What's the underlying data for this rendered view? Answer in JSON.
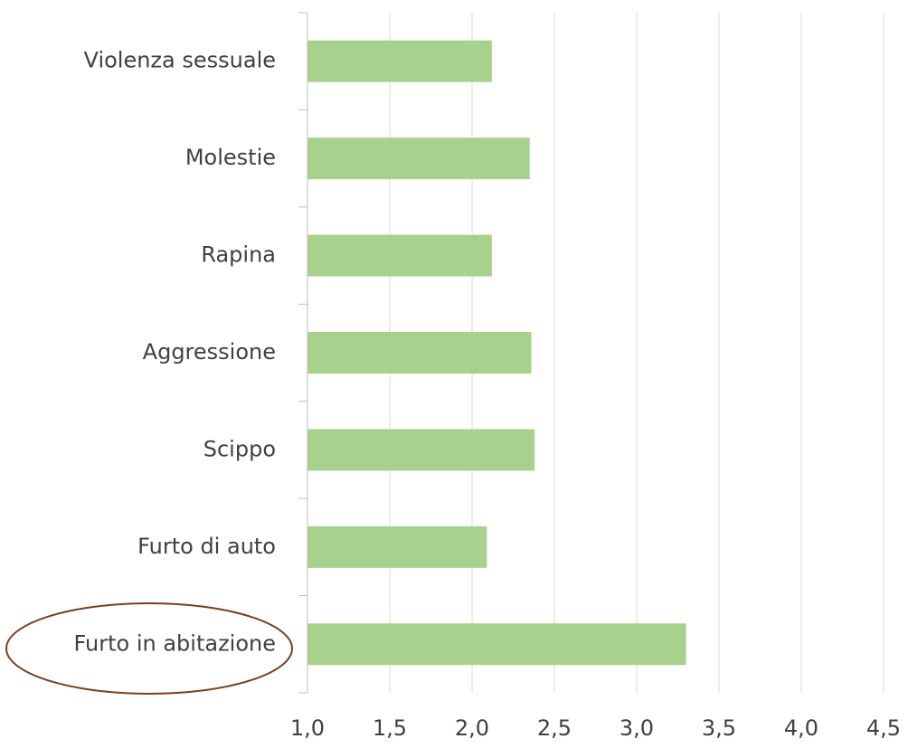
{
  "chart_data": {
    "type": "barh",
    "categories": [
      "Violenza sessuale",
      "Molestie",
      "Rapina",
      "Aggressione",
      "Scippo",
      "Furto di auto",
      "Furto in abitazione"
    ],
    "values": [
      2.12,
      2.35,
      2.12,
      2.36,
      2.38,
      2.09,
      3.3
    ],
    "color": "#a9d18e",
    "xlim": [
      1.0,
      4.5
    ],
    "xticks": [
      {
        "value": 1.0,
        "label": "1,0"
      },
      {
        "value": 1.5,
        "label": "1,5"
      },
      {
        "value": 2.0,
        "label": "2,0"
      },
      {
        "value": 2.5,
        "label": "2,5"
      },
      {
        "value": 3.0,
        "label": "3,0"
      },
      {
        "value": 3.5,
        "label": "3,5"
      },
      {
        "value": 4.0,
        "label": "4,0"
      },
      {
        "value": 4.5,
        "label": "4,5"
      }
    ],
    "grid": true
  }
}
